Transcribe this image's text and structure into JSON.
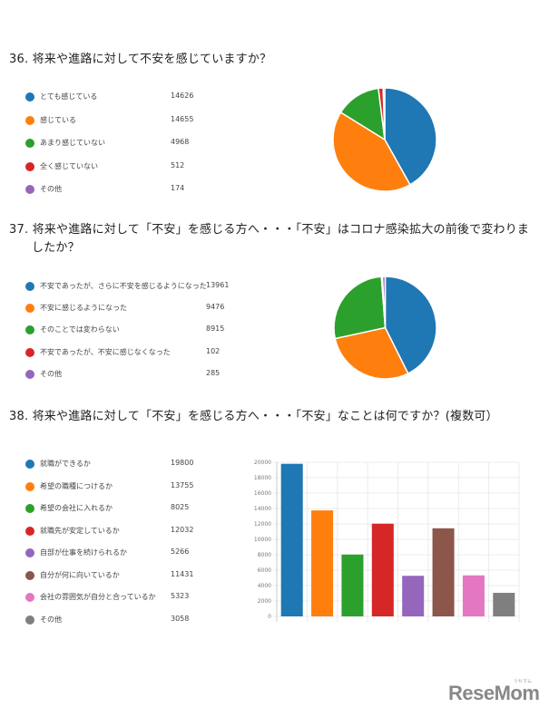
{
  "q36": {
    "title": "36.  将来や進路に対して不安を感じていますか？",
    "items": [
      {
        "label": "とても感じている",
        "value": "14626",
        "color": "#1f77b4"
      },
      {
        "label": "感じている",
        "value": "14655",
        "color": "#ff7f0e"
      },
      {
        "label": "あまり感じていない",
        "value": "4968",
        "color": "#2ca02c"
      },
      {
        "label": "全く感じていない",
        "value": "512",
        "color": "#d62728"
      },
      {
        "label": "その他",
        "value": "174",
        "color": "#9467bd"
      }
    ]
  },
  "q37": {
    "title_line1": "37.  将来や進路に対して「不安」を感じる方へ・・・「不安」はコロナ感染拡大の前後で変わりま",
    "title_line2": "したか？",
    "items": [
      {
        "label": "不安であったが、さらに不安を感じるようになった",
        "value": "13961",
        "color": "#1f77b4"
      },
      {
        "label": "不安に感じるようになった",
        "value": "9476",
        "color": "#ff7f0e"
      },
      {
        "label": "そのことでは変わらない",
        "value": "8915",
        "color": "#2ca02c"
      },
      {
        "label": "不安であったが、不安に感じなくなった",
        "value": "102",
        "color": "#d62728"
      },
      {
        "label": "その他",
        "value": "285",
        "color": "#9467bd"
      }
    ]
  },
  "q38": {
    "title": "38.  将来や進路に対して「不安」を感じる方へ・・・「不安」なことは何ですか？(複数可）",
    "items": [
      {
        "label": "就職ができるか",
        "value": "19800",
        "color": "#1f77b4"
      },
      {
        "label": "希望の職種につけるか",
        "value": "13755",
        "color": "#ff7f0e"
      },
      {
        "label": "希望の会社に入れるか",
        "value": "8025",
        "color": "#2ca02c"
      },
      {
        "label": "就職先が安定しているか",
        "value": "12032",
        "color": "#d62728"
      },
      {
        "label": "自部が仕事を続けられるか",
        "value": "5266",
        "color": "#9467bd"
      },
      {
        "label": "自分が何に向いているか",
        "value": "11431",
        "color": "#8c564b"
      },
      {
        "label": "会社の雰囲気が自分と合っているか",
        "value": "5323",
        "color": "#e377c2"
      },
      {
        "label": "その他",
        "value": "3058",
        "color": "#7f7f7f"
      }
    ],
    "y_ticks": [
      "20000",
      "18000",
      "16000",
      "14000",
      "12000",
      "10000",
      "8000",
      "6000",
      "4000",
      "2000",
      "0"
    ]
  },
  "logo": {
    "text": "ReseMom",
    "kana": "リセマム"
  },
  "chart_data": [
    {
      "type": "pie",
      "title": "36. 将来や進路に対して不安を感じていますか？",
      "categories": [
        "とても感じている",
        "感じている",
        "あまり感じていない",
        "全く感じていない",
        "その他"
      ],
      "values": [
        14626,
        14655,
        4968,
        512,
        174
      ],
      "colors": [
        "#1f77b4",
        "#ff7f0e",
        "#2ca02c",
        "#d62728",
        "#9467bd"
      ],
      "legend_position": "left"
    },
    {
      "type": "pie",
      "title": "37. 将来や進路に対して「不安」を感じる方へ・・・「不安」はコロナ感染拡大の前後で変わりましたか？",
      "categories": [
        "不安であったが、さらに不安を感じるようになった",
        "不安に感じるようになった",
        "そのことでは変わらない",
        "不安であったが、不安に感じなくなった",
        "その他"
      ],
      "values": [
        13961,
        9476,
        8915,
        102,
        285
      ],
      "colors": [
        "#1f77b4",
        "#ff7f0e",
        "#2ca02c",
        "#d62728",
        "#9467bd"
      ],
      "legend_position": "left"
    },
    {
      "type": "bar",
      "title": "38. 将来や進路に対して「不安」を感じる方へ・・・「不安」なことは何ですか？(複数可）",
      "categories": [
        "就職ができるか",
        "希望の職種につけるか",
        "希望の会社に入れるか",
        "就職先が安定しているか",
        "自部が仕事を続けられるか",
        "自分が何に向いているか",
        "会社の雰囲気が自分と合っているか",
        "その他"
      ],
      "values": [
        19800,
        13755,
        8025,
        12032,
        5266,
        11431,
        5323,
        3058
      ],
      "colors": [
        "#1f77b4",
        "#ff7f0e",
        "#2ca02c",
        "#d62728",
        "#9467bd",
        "#8c564b",
        "#e377c2",
        "#7f7f7f"
      ],
      "xlabel": "",
      "ylabel": "",
      "ylim": [
        0,
        20000
      ],
      "y_ticks": [
        0,
        2000,
        4000,
        6000,
        8000,
        10000,
        12000,
        14000,
        16000,
        18000,
        20000
      ],
      "grid": true,
      "legend_position": "left"
    }
  ]
}
